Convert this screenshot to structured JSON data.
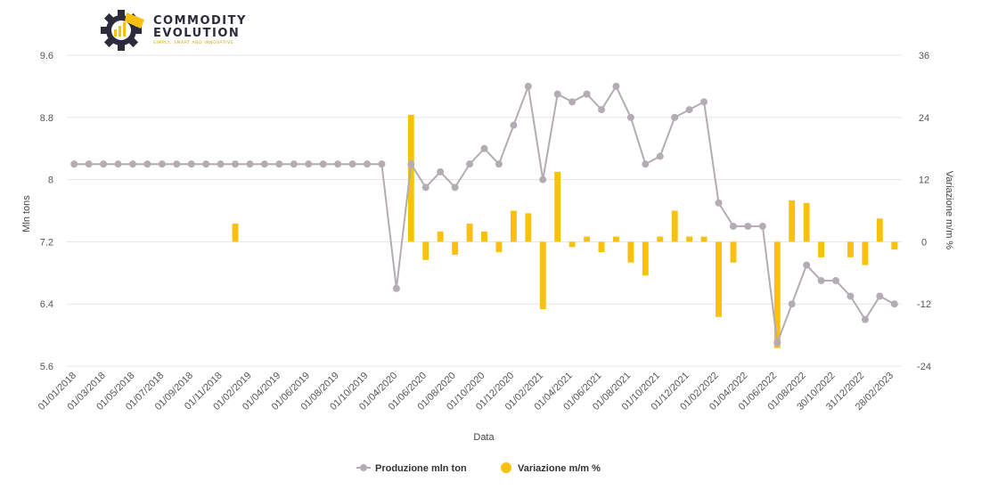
{
  "logo": {
    "line1": "COMMODITY",
    "line2": "EVOLUTION",
    "tagline": "SIMPLY, SMART AND INNOVATIVE"
  },
  "colors": {
    "line": "#b3acb2",
    "bar": "#f9c10d",
    "grid": "#e6e6e6",
    "logo_dark": "#2b2b3b"
  },
  "chart_data": {
    "type": "bar+line",
    "xlabel": "Data",
    "ylabel_left": "Mln tons",
    "ylabel_right": "Variazione m/m %",
    "yleft_range": [
      5.6,
      9.6
    ],
    "yleft_ticks": [
      "9.6",
      "8.8",
      "8",
      "7.2",
      "6.4",
      "5.6"
    ],
    "yright_range": [
      -24,
      36
    ],
    "yright_ticks": [
      "36",
      "24",
      "12",
      "0",
      "-12",
      "-24"
    ],
    "grid": true,
    "legend_position": "bottom-center",
    "x_tick_labels": [
      "01/01/2018",
      "01/03/2018",
      "01/05/2018",
      "01/07/2018",
      "01/09/2018",
      "01/11/2018",
      "01/02/2019",
      "01/04/2019",
      "01/06/2019",
      "01/08/2019",
      "01/10/2019",
      "01/04/2020",
      "01/06/2020",
      "01/08/2020",
      "01/10/2020",
      "01/12/2020",
      "01/02/2021",
      "01/04/2021",
      "01/06/2021",
      "01/08/2021",
      "01/10/2021",
      "01/12/2021",
      "01/02/2022",
      "01/04/2022",
      "01/06/2022",
      "01/08/2022",
      "30/10/2022",
      "31/12/2022",
      "28/02/2023"
    ],
    "series": [
      {
        "name": "Produzione mln ton",
        "kind": "line",
        "axis": "left",
        "values": [
          8.2,
          8.2,
          8.2,
          8.2,
          8.2,
          8.2,
          8.2,
          8.2,
          8.2,
          8.2,
          8.2,
          8.2,
          8.2,
          8.2,
          8.2,
          8.2,
          8.2,
          8.2,
          8.2,
          8.2,
          8.2,
          8.2,
          6.6,
          8.2,
          7.9,
          8.1,
          7.9,
          8.2,
          8.4,
          8.2,
          8.7,
          9.2,
          8.0,
          9.1,
          9.0,
          9.1,
          8.9,
          9.2,
          8.8,
          8.2,
          8.3,
          8.8,
          8.9,
          9.0,
          7.7,
          7.4,
          7.4,
          7.4,
          5.9,
          6.4,
          6.9,
          6.7,
          6.7,
          6.5,
          6.2,
          6.5,
          6.4
        ]
      },
      {
        "name": "Variazione m/m %",
        "kind": "bar",
        "axis": "right",
        "values": [
          0,
          0,
          0,
          0,
          0,
          0,
          0,
          0,
          0,
          0,
          0,
          3.5,
          0,
          0,
          0,
          0,
          0,
          0,
          0,
          0,
          0,
          0,
          0,
          24.5,
          -3.5,
          2.0,
          -2.5,
          3.5,
          2.0,
          -2.0,
          6.0,
          5.5,
          -13.0,
          13.5,
          -1.0,
          1.0,
          -2.0,
          1.0,
          -4.0,
          -6.5,
          1.0,
          6.0,
          1.0,
          1.0,
          -14.5,
          -4.0,
          0,
          0,
          -20.5,
          8.0,
          7.5,
          -3.0,
          0,
          -3.0,
          -4.5,
          4.5,
          -1.5
        ]
      }
    ]
  }
}
